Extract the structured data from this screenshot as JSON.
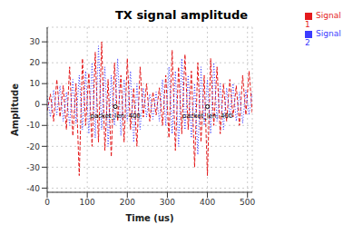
{
  "chart_data": {
    "type": "line",
    "title": "TX signal amplitude",
    "x_label": "Time (us)",
    "y_label": "Amplitude",
    "x": [
      0,
      8,
      16,
      24,
      32,
      40,
      48,
      56,
      64,
      72,
      80,
      88,
      96,
      104,
      112,
      120,
      128,
      136,
      144,
      152,
      160,
      168,
      176,
      184,
      192,
      200,
      208,
      216,
      224,
      232,
      240,
      248,
      256,
      264,
      272,
      280,
      288,
      296,
      304,
      312,
      320,
      328,
      336,
      344,
      352,
      360,
      368,
      376,
      384,
      392,
      400,
      408,
      416,
      424,
      432,
      440,
      448,
      456,
      464,
      472,
      480,
      488,
      496,
      504,
      512
    ],
    "series": [
      {
        "name": "Signal 1",
        "color": "#e41a1c",
        "line_style": "dashed",
        "values": [
          -3,
          5,
          -8,
          12,
          -6,
          9,
          -12,
          18,
          -15,
          10,
          -34,
          22,
          -10,
          15,
          -20,
          25,
          -18,
          30,
          -22,
          12,
          -25,
          20,
          -8,
          14,
          -18,
          22,
          -12,
          8,
          -20,
          18,
          -6,
          10,
          -8,
          6,
          -5,
          8,
          -10,
          14,
          -16,
          26,
          -22,
          18,
          -14,
          24,
          -12,
          16,
          -30,
          20,
          -18,
          14,
          -34,
          22,
          -10,
          18,
          -14,
          10,
          -8,
          12,
          -6,
          9,
          -10,
          14,
          -5,
          16,
          -4
        ]
      },
      {
        "name": "Signal 2",
        "color": "#3b3bff",
        "line_style": "dotted",
        "values": [
          4,
          -6,
          7,
          -5,
          9,
          -8,
          6,
          -10,
          12,
          -9,
          14,
          -12,
          16,
          -14,
          20,
          -16,
          28,
          -12,
          18,
          -20,
          14,
          -10,
          22,
          -15,
          12,
          -8,
          16,
          -18,
          10,
          -12,
          8,
          -6,
          5,
          -7,
          6,
          -8,
          12,
          -10,
          18,
          -14,
          16,
          -20,
          22,
          -12,
          14,
          -16,
          10,
          -24,
          18,
          -10,
          12,
          -14,
          20,
          -8,
          10,
          -12,
          8,
          -6,
          10,
          -8,
          6,
          -9,
          7,
          -5,
          6
        ]
      }
    ],
    "xlim": [
      0,
      512
    ],
    "xticks": [
      0,
      100,
      200,
      300,
      400,
      500
    ],
    "ylim": [
      -42,
      37
    ],
    "yticks": [
      -40,
      -30,
      -20,
      -10,
      0,
      10,
      20,
      30
    ],
    "grid": true,
    "legend": "top-right",
    "marker": "none",
    "annotations": [
      {
        "text": "packet_len: 400",
        "x": 170,
        "y": -1
      },
      {
        "text": "packet_len: 400",
        "x": 400,
        "y": -1
      }
    ]
  }
}
